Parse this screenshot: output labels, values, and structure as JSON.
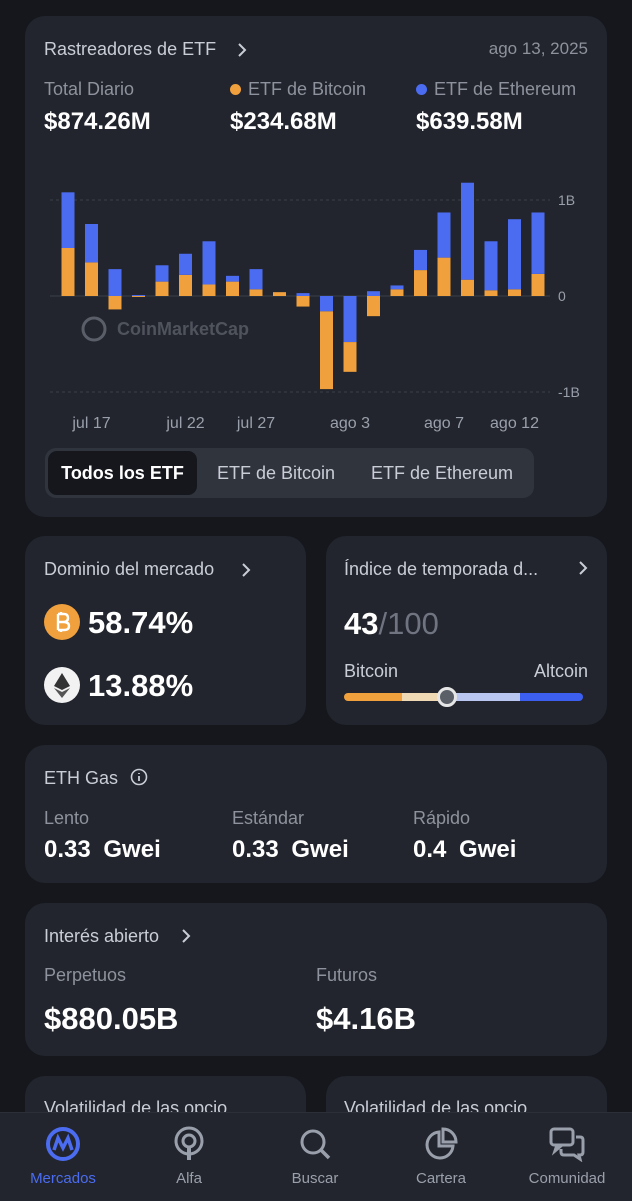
{
  "header": {
    "title": "Rastreadores de ETF",
    "date": "ago 13, 2025",
    "total_label": "Total Diario",
    "total": "$874.26M",
    "bitcoin_total": "$234.68M",
    "ethereum_total": "$639.58M",
    "watermark": "CoinMarketCap",
    "tabs": [
      "Todos los ETF",
      "ETF de Bitcoin",
      "ETF de Ethereum"
    ]
  },
  "chart_data": {
    "type": "bar",
    "stacked": true,
    "categories": [
      null,
      "jul 17",
      null,
      null,
      null,
      "jul 22",
      null,
      null,
      "jul 27",
      null,
      null,
      null,
      "ago 3",
      null,
      null,
      null,
      "ago 7",
      null,
      null,
      "ago 12",
      null
    ],
    "series": [
      {
        "name": "ETF de Bitcoin",
        "color": "#f0a03c",
        "values": [
          500000000,
          350000000,
          -140000000,
          -10000000,
          150000000,
          220000000,
          120000000,
          150000000,
          70000000,
          40000000,
          -110000000,
          -810000000,
          -310000000,
          -210000000,
          70000000,
          270000000,
          400000000,
          170000000,
          60000000,
          70000000,
          230000000
        ]
      },
      {
        "name": "ETF de Ethereum",
        "color": "#4b6cf0",
        "values": [
          580000000,
          400000000,
          280000000,
          10000000,
          170000000,
          220000000,
          450000000,
          60000000,
          210000000,
          0,
          30000000,
          -160000000,
          -480000000,
          50000000,
          40000000,
          210000000,
          470000000,
          1010000000,
          510000000,
          730000000,
          640000000
        ]
      }
    ],
    "ylim": [
      -1000000000,
      1200000000
    ],
    "yticks": [
      {
        "value": 1000000000,
        "label": "1B"
      },
      0,
      {
        "value": -1000000000,
        "label": "-1B"
      }
    ],
    "grid": true
  },
  "dominance": {
    "title": "Dominio del mercado",
    "bitcoin": "58.74%",
    "ethereum": "13.88%"
  },
  "altseason": {
    "title": "Índice de temporada d...",
    "score": 43,
    "out_of": "/100",
    "left_label": "Bitcoin",
    "right_label": "Altcoin"
  },
  "gas": {
    "title": "ETH Gas",
    "tiers": [
      {
        "label": "Lento",
        "value": "0.33 Gwei"
      },
      {
        "label": "Estándar",
        "value": "0.33 Gwei"
      },
      {
        "label": "Rápido",
        "value": "0.4 Gwei"
      }
    ]
  },
  "open_interest": {
    "title": "Interés abierto",
    "items": [
      {
        "label": "Perpetuos",
        "value": "$880.05B"
      },
      {
        "label": "Futuros",
        "value": "$4.16B"
      }
    ]
  },
  "more": [
    "Volatilidad de las opcio",
    "Volatilidad de las opcio"
  ],
  "nav": [
    "Mercados",
    "Alfa",
    "Buscar",
    "Cartera",
    "Comunidad"
  ]
}
